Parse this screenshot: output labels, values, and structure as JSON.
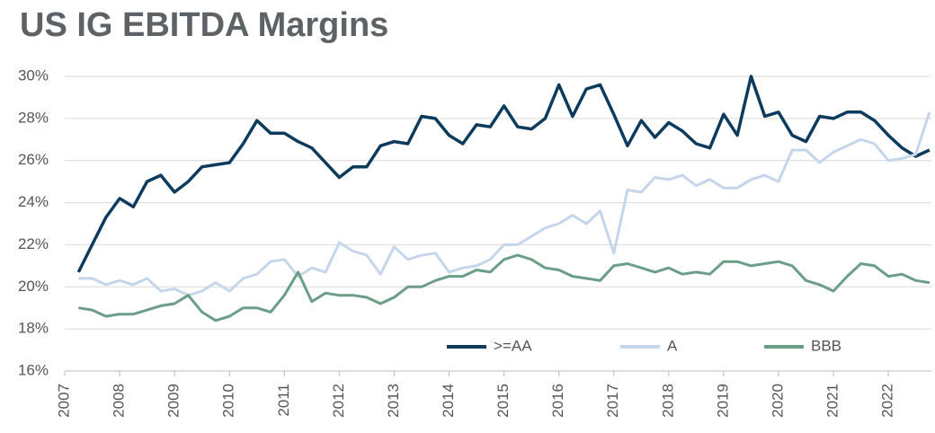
{
  "chart_data": {
    "type": "line",
    "title": "US IG EBITDA Margins",
    "x": [
      2007.25,
      2007.5,
      2007.75,
      2008,
      2008.25,
      2008.5,
      2008.75,
      2009,
      2009.25,
      2009.5,
      2009.75,
      2010,
      2010.25,
      2010.5,
      2010.75,
      2011,
      2011.25,
      2011.5,
      2011.75,
      2012,
      2012.25,
      2012.5,
      2012.75,
      2013,
      2013.25,
      2013.5,
      2013.75,
      2014,
      2014.25,
      2014.5,
      2014.75,
      2015,
      2015.25,
      2015.5,
      2015.75,
      2016,
      2016.25,
      2016.5,
      2016.75,
      2017,
      2017.25,
      2017.5,
      2017.75,
      2018,
      2018.25,
      2018.5,
      2018.75,
      2019,
      2019.25,
      2019.5,
      2019.75,
      2020,
      2020.25,
      2020.5,
      2020.75,
      2021,
      2021.25,
      2021.5,
      2021.75,
      2022,
      2022.25,
      2022.5,
      2022.75
    ],
    "series": [
      {
        "name": ">=AA",
        "color": "#0d3b5e",
        "values": [
          20.7,
          22.0,
          23.3,
          24.2,
          23.8,
          25.0,
          25.3,
          24.5,
          25.0,
          25.7,
          25.8,
          25.9,
          26.8,
          27.9,
          27.3,
          27.3,
          26.9,
          26.6,
          25.9,
          25.2,
          25.7,
          25.7,
          26.7,
          26.9,
          26.8,
          28.1,
          28.0,
          27.2,
          26.8,
          27.7,
          27.6,
          28.6,
          27.6,
          27.5,
          28.0,
          29.6,
          28.1,
          29.4,
          29.6,
          28.2,
          26.7,
          27.9,
          27.1,
          27.8,
          27.4,
          26.8,
          26.6,
          28.2,
          27.2,
          30.0,
          28.1,
          28.3,
          27.2,
          26.9,
          28.1,
          28.0,
          28.3,
          28.3,
          27.9,
          27.2,
          26.6,
          26.2,
          26.5
        ]
      },
      {
        "name": "A",
        "color": "#c5d5ea",
        "values": [
          20.4,
          20.4,
          20.1,
          20.3,
          20.1,
          20.4,
          19.8,
          19.9,
          19.6,
          19.8,
          20.2,
          19.8,
          20.4,
          20.6,
          21.2,
          21.3,
          20.5,
          20.9,
          20.7,
          22.1,
          21.7,
          21.5,
          20.6,
          21.9,
          21.3,
          21.5,
          21.6,
          20.7,
          20.9,
          21.0,
          21.3,
          22.0,
          22.0,
          22.4,
          22.8,
          23.0,
          23.4,
          23.0,
          23.6,
          21.6,
          24.6,
          24.5,
          25.2,
          25.1,
          25.3,
          24.8,
          25.1,
          24.7,
          24.7,
          25.1,
          25.3,
          25.0,
          26.5,
          26.5,
          25.9,
          26.4,
          26.7,
          27.0,
          26.8,
          26.0,
          26.1,
          26.3,
          28.3
        ]
      },
      {
        "name": "BBB",
        "color": "#6b9e86",
        "values": [
          19.0,
          18.9,
          18.6,
          18.7,
          18.7,
          18.9,
          19.1,
          19.2,
          19.6,
          18.8,
          18.4,
          18.6,
          19.0,
          19.0,
          18.8,
          19.6,
          20.7,
          19.3,
          19.7,
          19.6,
          19.6,
          19.5,
          19.2,
          19.5,
          20.0,
          20.0,
          20.3,
          20.5,
          20.5,
          20.8,
          20.7,
          21.3,
          21.5,
          21.3,
          20.9,
          20.8,
          20.5,
          20.4,
          20.3,
          21.0,
          21.1,
          20.9,
          20.7,
          20.9,
          20.6,
          20.7,
          20.6,
          21.2,
          21.2,
          21.0,
          21.1,
          21.2,
          21.0,
          20.3,
          20.1,
          19.8,
          20.5,
          21.1,
          21.0,
          20.5,
          20.6,
          20.3,
          20.2
        ]
      }
    ],
    "xlim": [
      2007,
      2022.85
    ],
    "xticks": [
      2007,
      2008,
      2009,
      2010,
      2011,
      2012,
      2013,
      2014,
      2015,
      2016,
      2017,
      2018,
      2019,
      2020,
      2021,
      2022
    ],
    "ylim": [
      16,
      30
    ],
    "yticks": [
      {
        "value": 16,
        "label": "16%"
      },
      {
        "value": 18,
        "label": "18%"
      },
      {
        "value": 20,
        "label": "20%"
      },
      {
        "value": 22,
        "label": "22%"
      },
      {
        "value": 24,
        "label": "24%"
      },
      {
        "value": 26,
        "label": "26%"
      },
      {
        "value": 28,
        "label": "28%"
      },
      {
        "value": 30,
        "label": "30%"
      }
    ],
    "grid": true,
    "legend": "bottom"
  }
}
